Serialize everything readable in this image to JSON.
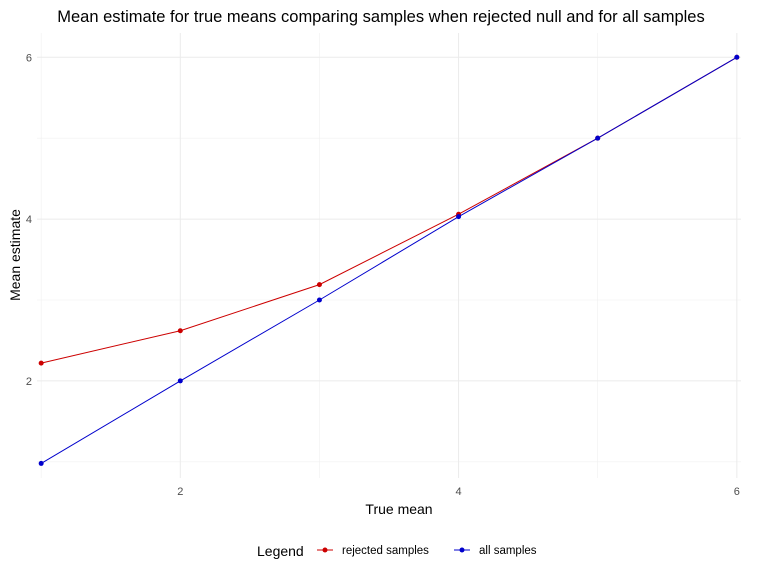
{
  "chart_data": {
    "type": "line",
    "title": "Mean estimate for true means comparing samples when rejected null and for all samples",
    "xlabel": "True mean",
    "ylabel": "Mean estimate",
    "x": [
      1,
      2,
      3,
      4,
      5,
      6
    ],
    "xlim": [
      0.97,
      6.03
    ],
    "ylim": [
      0.8,
      6.3
    ],
    "x_ticks": [
      2,
      4,
      6
    ],
    "y_ticks": [
      2,
      4,
      6
    ],
    "x_minor_ticks": [
      1,
      3,
      5
    ],
    "y_minor_ticks": [
      1,
      3,
      5
    ],
    "grid": true,
    "series": [
      {
        "name": "rejected samples",
        "color": "#cc0000",
        "values": [
          2.22,
          2.62,
          3.19,
          4.06,
          5.0,
          6.0
        ]
      },
      {
        "name": "all samples",
        "color": "#0000cc",
        "values": [
          0.98,
          2.0,
          3.0,
          4.03,
          5.0,
          6.0
        ]
      }
    ],
    "legend": {
      "title": "Legend",
      "position": "bottom"
    }
  }
}
